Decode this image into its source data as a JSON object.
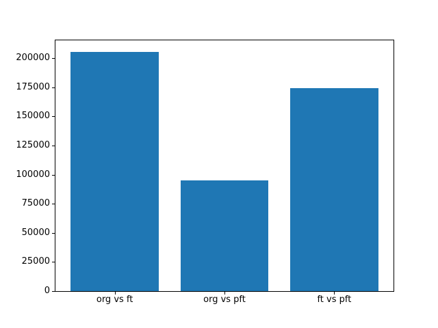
{
  "chart_data": {
    "type": "bar",
    "categories": [
      "org vs ft",
      "org vs pft",
      "ft vs pft"
    ],
    "values": [
      205000,
      95000,
      174000
    ],
    "title": "",
    "xlabel": "",
    "ylabel": "",
    "ylim": [
      0,
      215250
    ],
    "yticks": [
      0,
      25000,
      50000,
      75000,
      100000,
      125000,
      150000,
      175000,
      200000
    ],
    "ytick_labels": [
      "0",
      "25000",
      "50000",
      "75000",
      "100000",
      "125000",
      "150000",
      "175000",
      "200000"
    ],
    "bar_color": "#1f77b4",
    "bar_width_fraction": 0.8,
    "grid": false,
    "legend": null
  }
}
